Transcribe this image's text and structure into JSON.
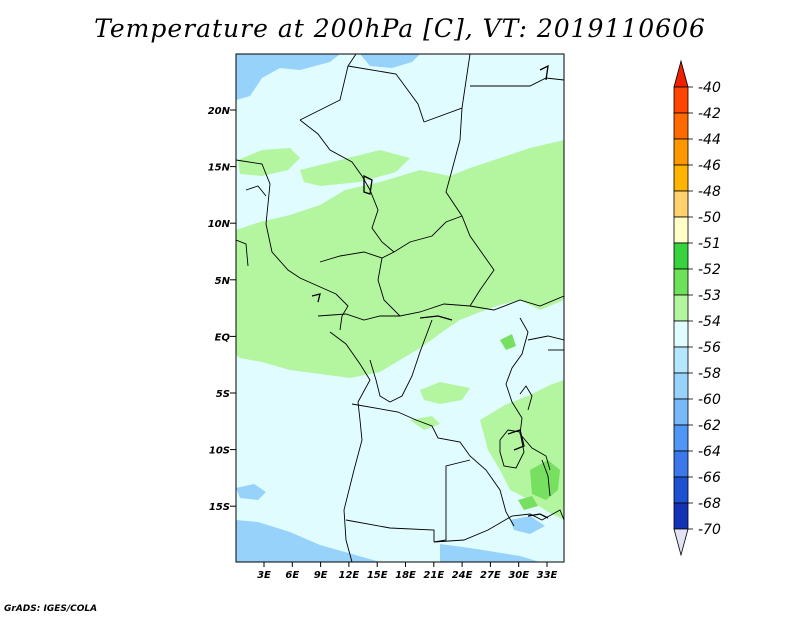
{
  "title": "Temperature at 200hPa [C], VT: 2019110606",
  "credit": "GrADS: IGES/COLA",
  "map": {
    "lat_labels": [
      "20N",
      "15N",
      "10N",
      "5N",
      "EQ",
      "5S",
      "10S",
      "15S"
    ],
    "lon_labels": [
      "3E",
      "6E",
      "9E",
      "12E",
      "15E",
      "18E",
      "21E",
      "24E",
      "27E",
      "30E",
      "33E"
    ],
    "fields": {
      "background": "#e0fcff",
      "band_53": "#b4f5a0",
      "band_52": "#78e060",
      "band_56": "#96d2fa"
    }
  },
  "colorbar": {
    "labels": [
      "-40",
      "-42",
      "-44",
      "-46",
      "-48",
      "-50",
      "-51",
      "-52",
      "-53",
      "-54",
      "-56",
      "-58",
      "-60",
      "-62",
      "-64",
      "-66",
      "-68",
      "-70"
    ],
    "top_arrow_color": "#ee2000",
    "bottom_arrow_color": "#e2e2f4",
    "colors": [
      "#ff4500",
      "#ff6a00",
      "#ff9800",
      "#ffb400",
      "#ffd26e",
      "#ffffc8",
      "#37d23c",
      "#6ee15a",
      "#b4f5a0",
      "#e0fcff",
      "#b4e6ff",
      "#96d2fa",
      "#78b9fa",
      "#5096f5",
      "#3c78eb",
      "#1e50d2",
      "#1432b4",
      "#0a1478"
    ]
  }
}
